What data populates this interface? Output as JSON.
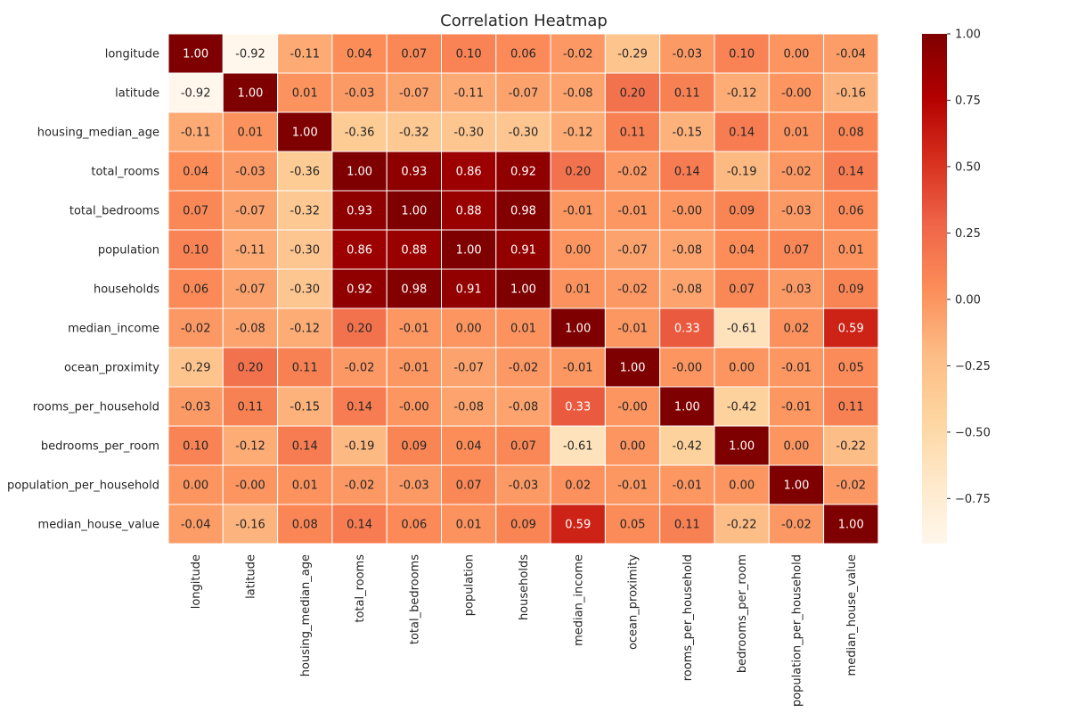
{
  "chart_data": {
    "type": "heatmap",
    "title": "Correlation Heatmap",
    "colormap": "OrRd",
    "cell_border_color": "#ffffff",
    "value_format": "2 decimals",
    "annotations": "shown in every cell",
    "colorbar": {
      "position": "right",
      "min": -0.92,
      "max": 1.0,
      "ticks": [
        1.0,
        0.75,
        0.5,
        0.25,
        0.0,
        -0.25,
        -0.5,
        -0.75
      ],
      "tick_labels": [
        "1.00",
        "0.75",
        "0.50",
        "0.25",
        "0.00",
        "−0.25",
        "−0.50",
        "−0.75"
      ]
    },
    "x_tick_rotation": "vertical",
    "labels": [
      "longitude",
      "latitude",
      "housing_median_age",
      "total_rooms",
      "total_bedrooms",
      "population",
      "households",
      "median_income",
      "ocean_proximity",
      "rooms_per_household",
      "bedrooms_per_room",
      "population_per_household",
      "median_house_value"
    ],
    "values": [
      [
        1.0,
        -0.92,
        -0.11,
        0.04,
        0.07,
        0.1,
        0.06,
        -0.02,
        -0.29,
        -0.03,
        0.1,
        0.0,
        -0.04
      ],
      [
        -0.92,
        1.0,
        0.01,
        -0.03,
        -0.07,
        -0.11,
        -0.07,
        -0.08,
        0.2,
        0.11,
        -0.12,
        -0.0,
        -0.16
      ],
      [
        -0.11,
        0.01,
        1.0,
        -0.36,
        -0.32,
        -0.3,
        -0.3,
        -0.12,
        0.11,
        -0.15,
        0.14,
        0.01,
        0.08
      ],
      [
        0.04,
        -0.03,
        -0.36,
        1.0,
        0.93,
        0.86,
        0.92,
        0.2,
        -0.02,
        0.14,
        -0.19,
        -0.02,
        0.14
      ],
      [
        0.07,
        -0.07,
        -0.32,
        0.93,
        1.0,
        0.88,
        0.98,
        -0.01,
        -0.01,
        -0.0,
        0.09,
        -0.03,
        0.06
      ],
      [
        0.1,
        -0.11,
        -0.3,
        0.86,
        0.88,
        1.0,
        0.91,
        0.0,
        -0.07,
        -0.08,
        0.04,
        0.07,
        0.01
      ],
      [
        0.06,
        -0.07,
        -0.3,
        0.92,
        0.98,
        0.91,
        1.0,
        0.01,
        -0.02,
        -0.08,
        0.07,
        -0.03,
        0.09
      ],
      [
        -0.02,
        -0.08,
        -0.12,
        0.2,
        -0.01,
        0.0,
        0.01,
        1.0,
        -0.01,
        0.33,
        -0.61,
        0.02,
        0.59
      ],
      [
        -0.29,
        0.2,
        0.11,
        -0.02,
        -0.01,
        -0.07,
        -0.02,
        -0.01,
        1.0,
        -0.0,
        0.0,
        -0.01,
        0.05
      ],
      [
        -0.03,
        0.11,
        -0.15,
        0.14,
        -0.0,
        -0.08,
        -0.08,
        0.33,
        -0.0,
        1.0,
        -0.42,
        -0.01,
        0.11
      ],
      [
        0.1,
        -0.12,
        0.14,
        -0.19,
        0.09,
        0.04,
        0.07,
        -0.61,
        0.0,
        -0.42,
        1.0,
        0.0,
        -0.22
      ],
      [
        0.0,
        -0.0,
        0.01,
        -0.02,
        -0.03,
        0.07,
        -0.03,
        0.02,
        -0.01,
        -0.01,
        0.0,
        1.0,
        -0.02
      ],
      [
        -0.04,
        -0.16,
        0.08,
        0.14,
        0.06,
        0.01,
        0.09,
        0.59,
        0.05,
        0.11,
        -0.22,
        -0.02,
        1.0
      ]
    ],
    "value_labels": [
      [
        "1.00",
        "-0.92",
        "-0.11",
        "0.04",
        "0.07",
        "0.10",
        "0.06",
        "-0.02",
        "-0.29",
        "-0.03",
        "0.10",
        "0.00",
        "-0.04"
      ],
      [
        "-0.92",
        "1.00",
        "0.01",
        "-0.03",
        "-0.07",
        "-0.11",
        "-0.07",
        "-0.08",
        "0.20",
        "0.11",
        "-0.12",
        "-0.00",
        "-0.16"
      ],
      [
        "-0.11",
        "0.01",
        "1.00",
        "-0.36",
        "-0.32",
        "-0.30",
        "-0.30",
        "-0.12",
        "0.11",
        "-0.15",
        "0.14",
        "0.01",
        "0.08"
      ],
      [
        "0.04",
        "-0.03",
        "-0.36",
        "1.00",
        "0.93",
        "0.86",
        "0.92",
        "0.20",
        "-0.02",
        "0.14",
        "-0.19",
        "-0.02",
        "0.14"
      ],
      [
        "0.07",
        "-0.07",
        "-0.32",
        "0.93",
        "1.00",
        "0.88",
        "0.98",
        "-0.01",
        "-0.01",
        "-0.00",
        "0.09",
        "-0.03",
        "0.06"
      ],
      [
        "0.10",
        "-0.11",
        "-0.30",
        "0.86",
        "0.88",
        "1.00",
        "0.91",
        "0.00",
        "-0.07",
        "-0.08",
        "0.04",
        "0.07",
        "0.01"
      ],
      [
        "0.06",
        "-0.07",
        "-0.30",
        "0.92",
        "0.98",
        "0.91",
        "1.00",
        "0.01",
        "-0.02",
        "-0.08",
        "0.07",
        "-0.03",
        "0.09"
      ],
      [
        "-0.02",
        "-0.08",
        "-0.12",
        "0.20",
        "-0.01",
        "0.00",
        "0.01",
        "1.00",
        "-0.01",
        "0.33",
        "-0.61",
        "0.02",
        "0.59"
      ],
      [
        "-0.29",
        "0.20",
        "0.11",
        "-0.02",
        "-0.01",
        "-0.07",
        "-0.02",
        "-0.01",
        "1.00",
        "-0.00",
        "0.00",
        "-0.01",
        "0.05"
      ],
      [
        "-0.03",
        "0.11",
        "-0.15",
        "0.14",
        "-0.00",
        "-0.08",
        "-0.08",
        "0.33",
        "-0.00",
        "1.00",
        "-0.42",
        "-0.01",
        "0.11"
      ],
      [
        "0.10",
        "-0.12",
        "0.14",
        "-0.19",
        "0.09",
        "0.04",
        "0.07",
        "-0.61",
        "0.00",
        "-0.42",
        "1.00",
        "0.00",
        "-0.22"
      ],
      [
        "0.00",
        "-0.00",
        "0.01",
        "-0.02",
        "-0.03",
        "0.07",
        "-0.03",
        "0.02",
        "-0.01",
        "-0.01",
        "0.00",
        "1.00",
        "-0.02"
      ],
      [
        "-0.04",
        "-0.16",
        "0.08",
        "0.14",
        "0.06",
        "0.01",
        "0.09",
        "0.59",
        "0.05",
        "0.11",
        "-0.22",
        "-0.02",
        "1.00"
      ]
    ]
  }
}
